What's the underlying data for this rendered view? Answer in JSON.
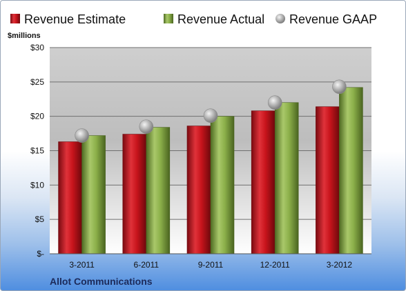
{
  "colors": {
    "estimate": "#c8141c",
    "actual": "#8cb04a",
    "gaap": "#a8a8a8"
  },
  "chart_data": {
    "type": "bar",
    "title": "",
    "unit_label": "$millions",
    "company": "Allot Communications",
    "categories": [
      "3-2011",
      "6-2011",
      "9-2011",
      "12-2011",
      "3-2012"
    ],
    "series": [
      {
        "name": "Revenue Estimate",
        "kind": "bar",
        "values": [
          16.3,
          17.4,
          18.6,
          20.8,
          21.4
        ]
      },
      {
        "name": "Revenue Actual",
        "kind": "bar",
        "values": [
          17.2,
          18.4,
          20.0,
          22.0,
          24.2
        ]
      },
      {
        "name": "Revenue GAAP",
        "kind": "marker",
        "values": [
          17.2,
          18.5,
          20.1,
          22.0,
          24.3
        ]
      }
    ],
    "ylim": [
      0,
      30
    ],
    "yticks": [
      0,
      5,
      10,
      15,
      20,
      25,
      30
    ],
    "ytick_labels": [
      "$-",
      "$5",
      "$10",
      "$15",
      "$20",
      "$25",
      "$30"
    ],
    "grid": true,
    "legend_position": "top"
  }
}
